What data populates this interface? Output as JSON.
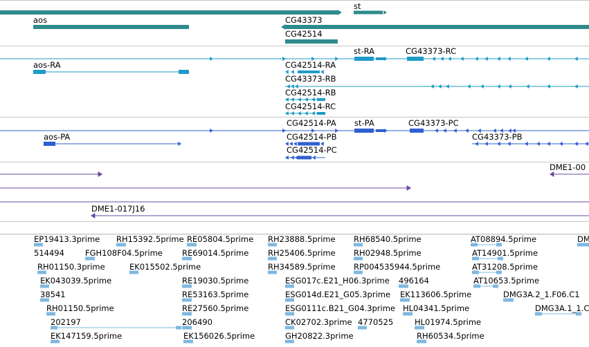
{
  "colors": {
    "gene": "#2e8b8b",
    "transcript": "#1f9bc8",
    "protein": "#2f5fd0",
    "clone": "#6a4aa0",
    "est": "#7fb8e0",
    "separator": "#c8c8c8"
  },
  "genes": {
    "st": "st",
    "aos": "aos",
    "cg43373": "CG43373",
    "cg42514": "CG42514"
  },
  "transcripts": {
    "st_ra": "st-RA",
    "cg43373_rc": "CG43373-RC",
    "aos_ra": "aos-RA",
    "cg42514_ra": "CG42514-RA",
    "cg43373_rb": "CG43373-RB",
    "cg42514_rb": "CG42514-RB",
    "cg42514_rc": "CG42514-RC"
  },
  "proteins": {
    "cg42514_pa": "CG42514-PA",
    "st_pa": "st-PA",
    "cg43373_pc": "CG43373-PC",
    "aos_pa": "aos-PA",
    "cg42514_pb": "CG42514-PB",
    "cg43373_pb": "CG43373-PB",
    "cg42514_pc": "CG42514-PC"
  },
  "clones": {
    "dme1_00": "DME1-00",
    "dme1_017j16": "DME1-017J16"
  },
  "ests": {
    "ep19413": "EP19413.3prime",
    "rh15392": "RH15392.5prime",
    "re05804": "RE05804.5prime",
    "rh23888": "RH23888.5prime",
    "rh68540": "RH68540.5prime",
    "at08894": "AT08894.5prime",
    "dm_edge": "DM",
    "n514494": "514494",
    "fgh108": "FGH108F04.5prime",
    "re69014": "RE69014.5prime",
    "rh25406": "RH25406.5prime",
    "rh02948": "RH02948.5prime",
    "at14901": "AT14901.5prime",
    "rh01150_3": "RH01150.3prime",
    "ek015502": "EK015502.5prime",
    "rh34589": "RH34589.5prime",
    "rp004535": "RP004535944.5prime",
    "at31208": "AT31208.5prime",
    "ek043039": "EK043039.5prime",
    "re19030": "RE19030.5prime",
    "esg017c": "ESG017c.E21_H06.3prime",
    "n496164": "496164",
    "at10653": "AT10653.5prime",
    "n38541": "38541",
    "re53163": "RE53163.5prime",
    "esg014d": "ESG014d.E21_G05.3prime",
    "ek113606": "EK113606.5prime",
    "dmg3a_f06": "DMG3A.2_1.F06.C1",
    "rh01150_5": "RH01150.5prime",
    "re27560": "RE27560.5prime",
    "esg0111c": "ESG0111c.B21_G04.3prime",
    "hl04341": "HL04341.5prime",
    "dmg3a_1": "DMG3A.1_1.C",
    "n202197": "202197",
    "n206490": "206490",
    "ck02702": "CK02702.3prime",
    "n4770525": "4770525",
    "hl01974": "HL01974.5prime",
    "ek147159": "EK147159.5prime",
    "ek156026": "EK156026.5prime",
    "gh20822": "GH20822.3prime",
    "rh60534": "RH60534.5prime"
  }
}
